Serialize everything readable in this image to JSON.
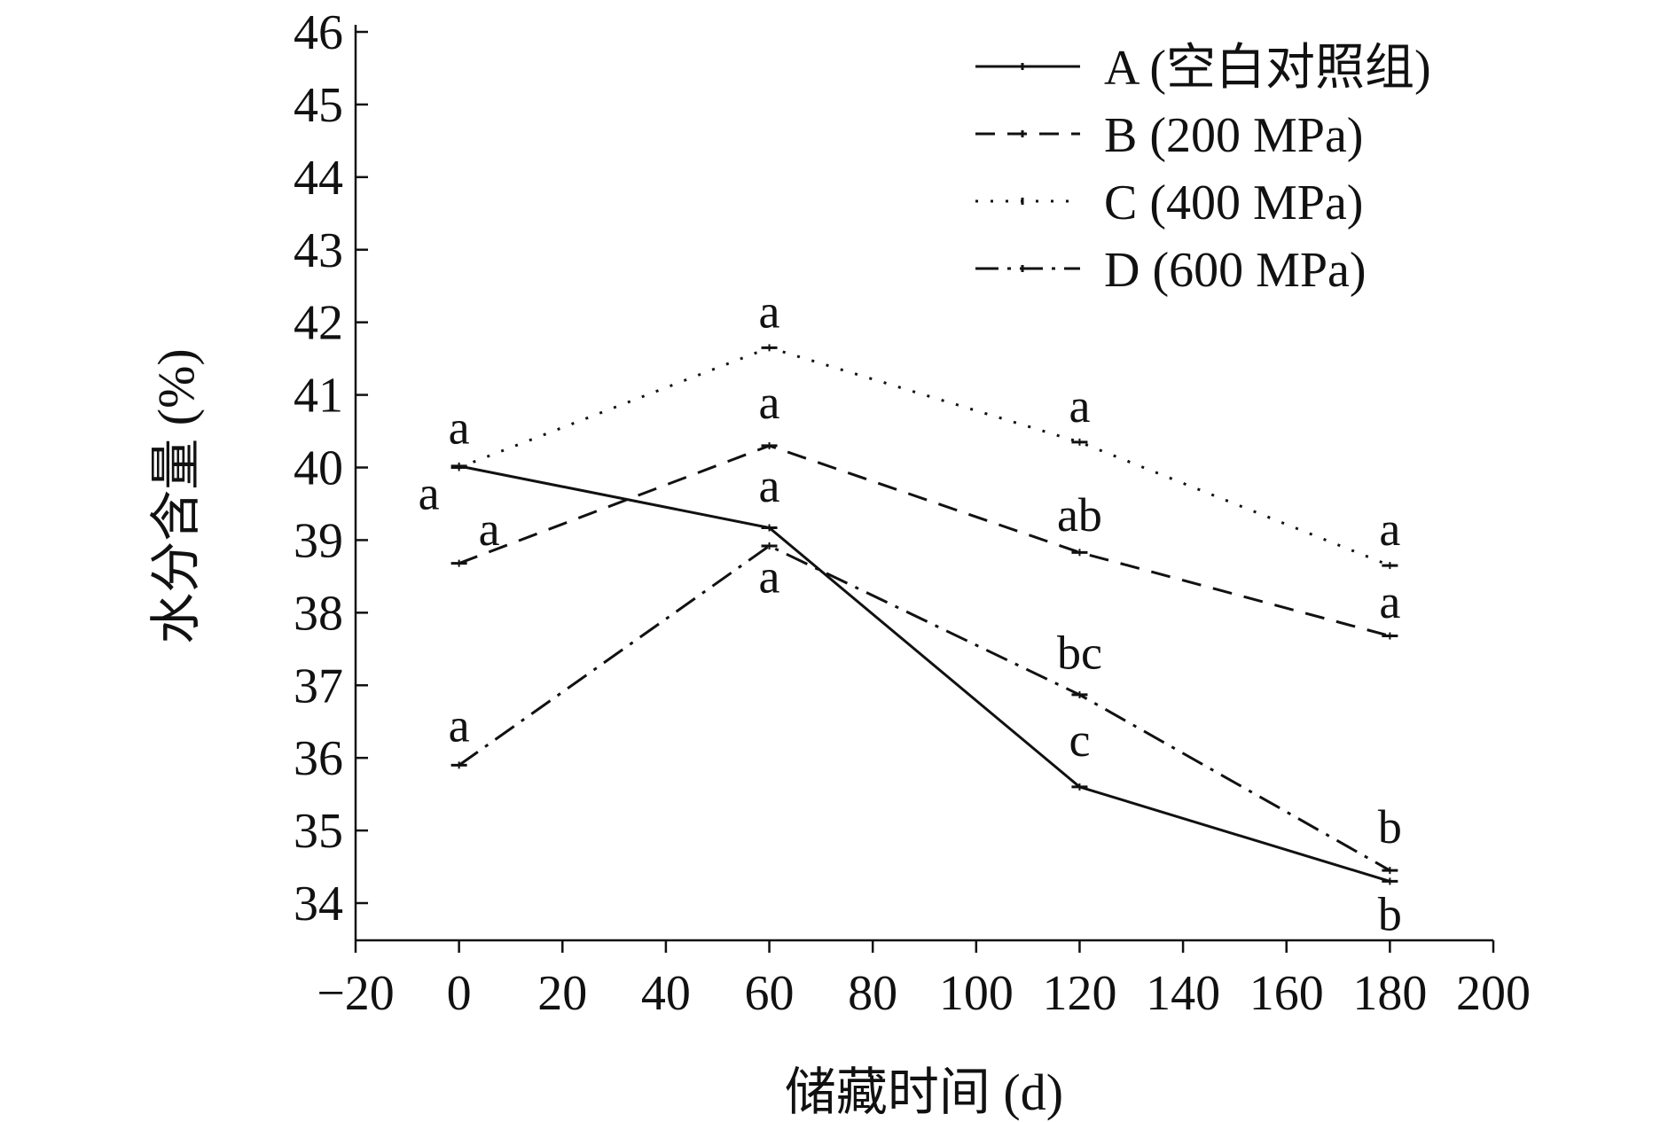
{
  "chart_data": {
    "type": "line",
    "title": "",
    "xlabel": "储藏时间 (d)",
    "ylabel": "水分含量 (%)",
    "xlim": [
      -20,
      200
    ],
    "ylim": [
      34,
      46
    ],
    "xticks": [
      -20,
      0,
      20,
      40,
      60,
      80,
      100,
      120,
      140,
      160,
      180,
      200
    ],
    "xtick_labels": [
      "−20",
      "0",
      "20",
      "40",
      "60",
      "80",
      "100",
      "120",
      "140",
      "160",
      "180",
      "200"
    ],
    "yticks": [
      34,
      35,
      36,
      37,
      38,
      39,
      40,
      41,
      42,
      43,
      44,
      45,
      46
    ],
    "ytick_labels": [
      "34",
      "35",
      "36",
      "37",
      "38",
      "39",
      "40",
      "41",
      "42",
      "43",
      "44",
      "45",
      "46"
    ],
    "grid": false,
    "legend_position": "top-right",
    "x": [
      0,
      60,
      120,
      180
    ],
    "series": [
      {
        "name": "A (空白对照组)",
        "style": "solid",
        "values": [
          40.02,
          39.17,
          35.6,
          34.3
        ]
      },
      {
        "name": "B (200 MPa)",
        "style": "dashed",
        "values": [
          38.68,
          40.3,
          38.83,
          37.68
        ]
      },
      {
        "name": "C (400 MPa)",
        "style": "dotted",
        "values": [
          40.0,
          41.65,
          40.35,
          38.65
        ]
      },
      {
        "name": "D (600 MPa)",
        "style": "dashdot",
        "values": [
          35.9,
          38.92,
          36.87,
          34.45
        ]
      }
    ],
    "annotations": [
      {
        "text": "a",
        "x": 0,
        "y": 40.5
      },
      {
        "text": "a",
        "x": 0,
        "y": 39.6
      },
      {
        "text": "a",
        "x": 0,
        "y": 39.1
      },
      {
        "text": "a",
        "x": 0,
        "y": 36.4
      },
      {
        "text": "a",
        "x": 60,
        "y": 42.1
      },
      {
        "text": "a",
        "x": 60,
        "y": 40.85
      },
      {
        "text": "a",
        "x": 60,
        "y": 39.7
      },
      {
        "text": "a",
        "x": 60,
        "y": 38.45
      },
      {
        "text": "a",
        "x": 120,
        "y": 40.8
      },
      {
        "text": "ab",
        "x": 120,
        "y": 39.3
      },
      {
        "text": "bc",
        "x": 120,
        "y": 37.4
      },
      {
        "text": "c",
        "x": 120,
        "y": 36.2
      },
      {
        "text": "a",
        "x": 180,
        "y": 39.1
      },
      {
        "text": "a",
        "x": 180,
        "y": 38.1
      },
      {
        "text": "b",
        "x": 180,
        "y": 35.0
      },
      {
        "text": "b",
        "x": 180,
        "y": 33.8
      }
    ]
  }
}
